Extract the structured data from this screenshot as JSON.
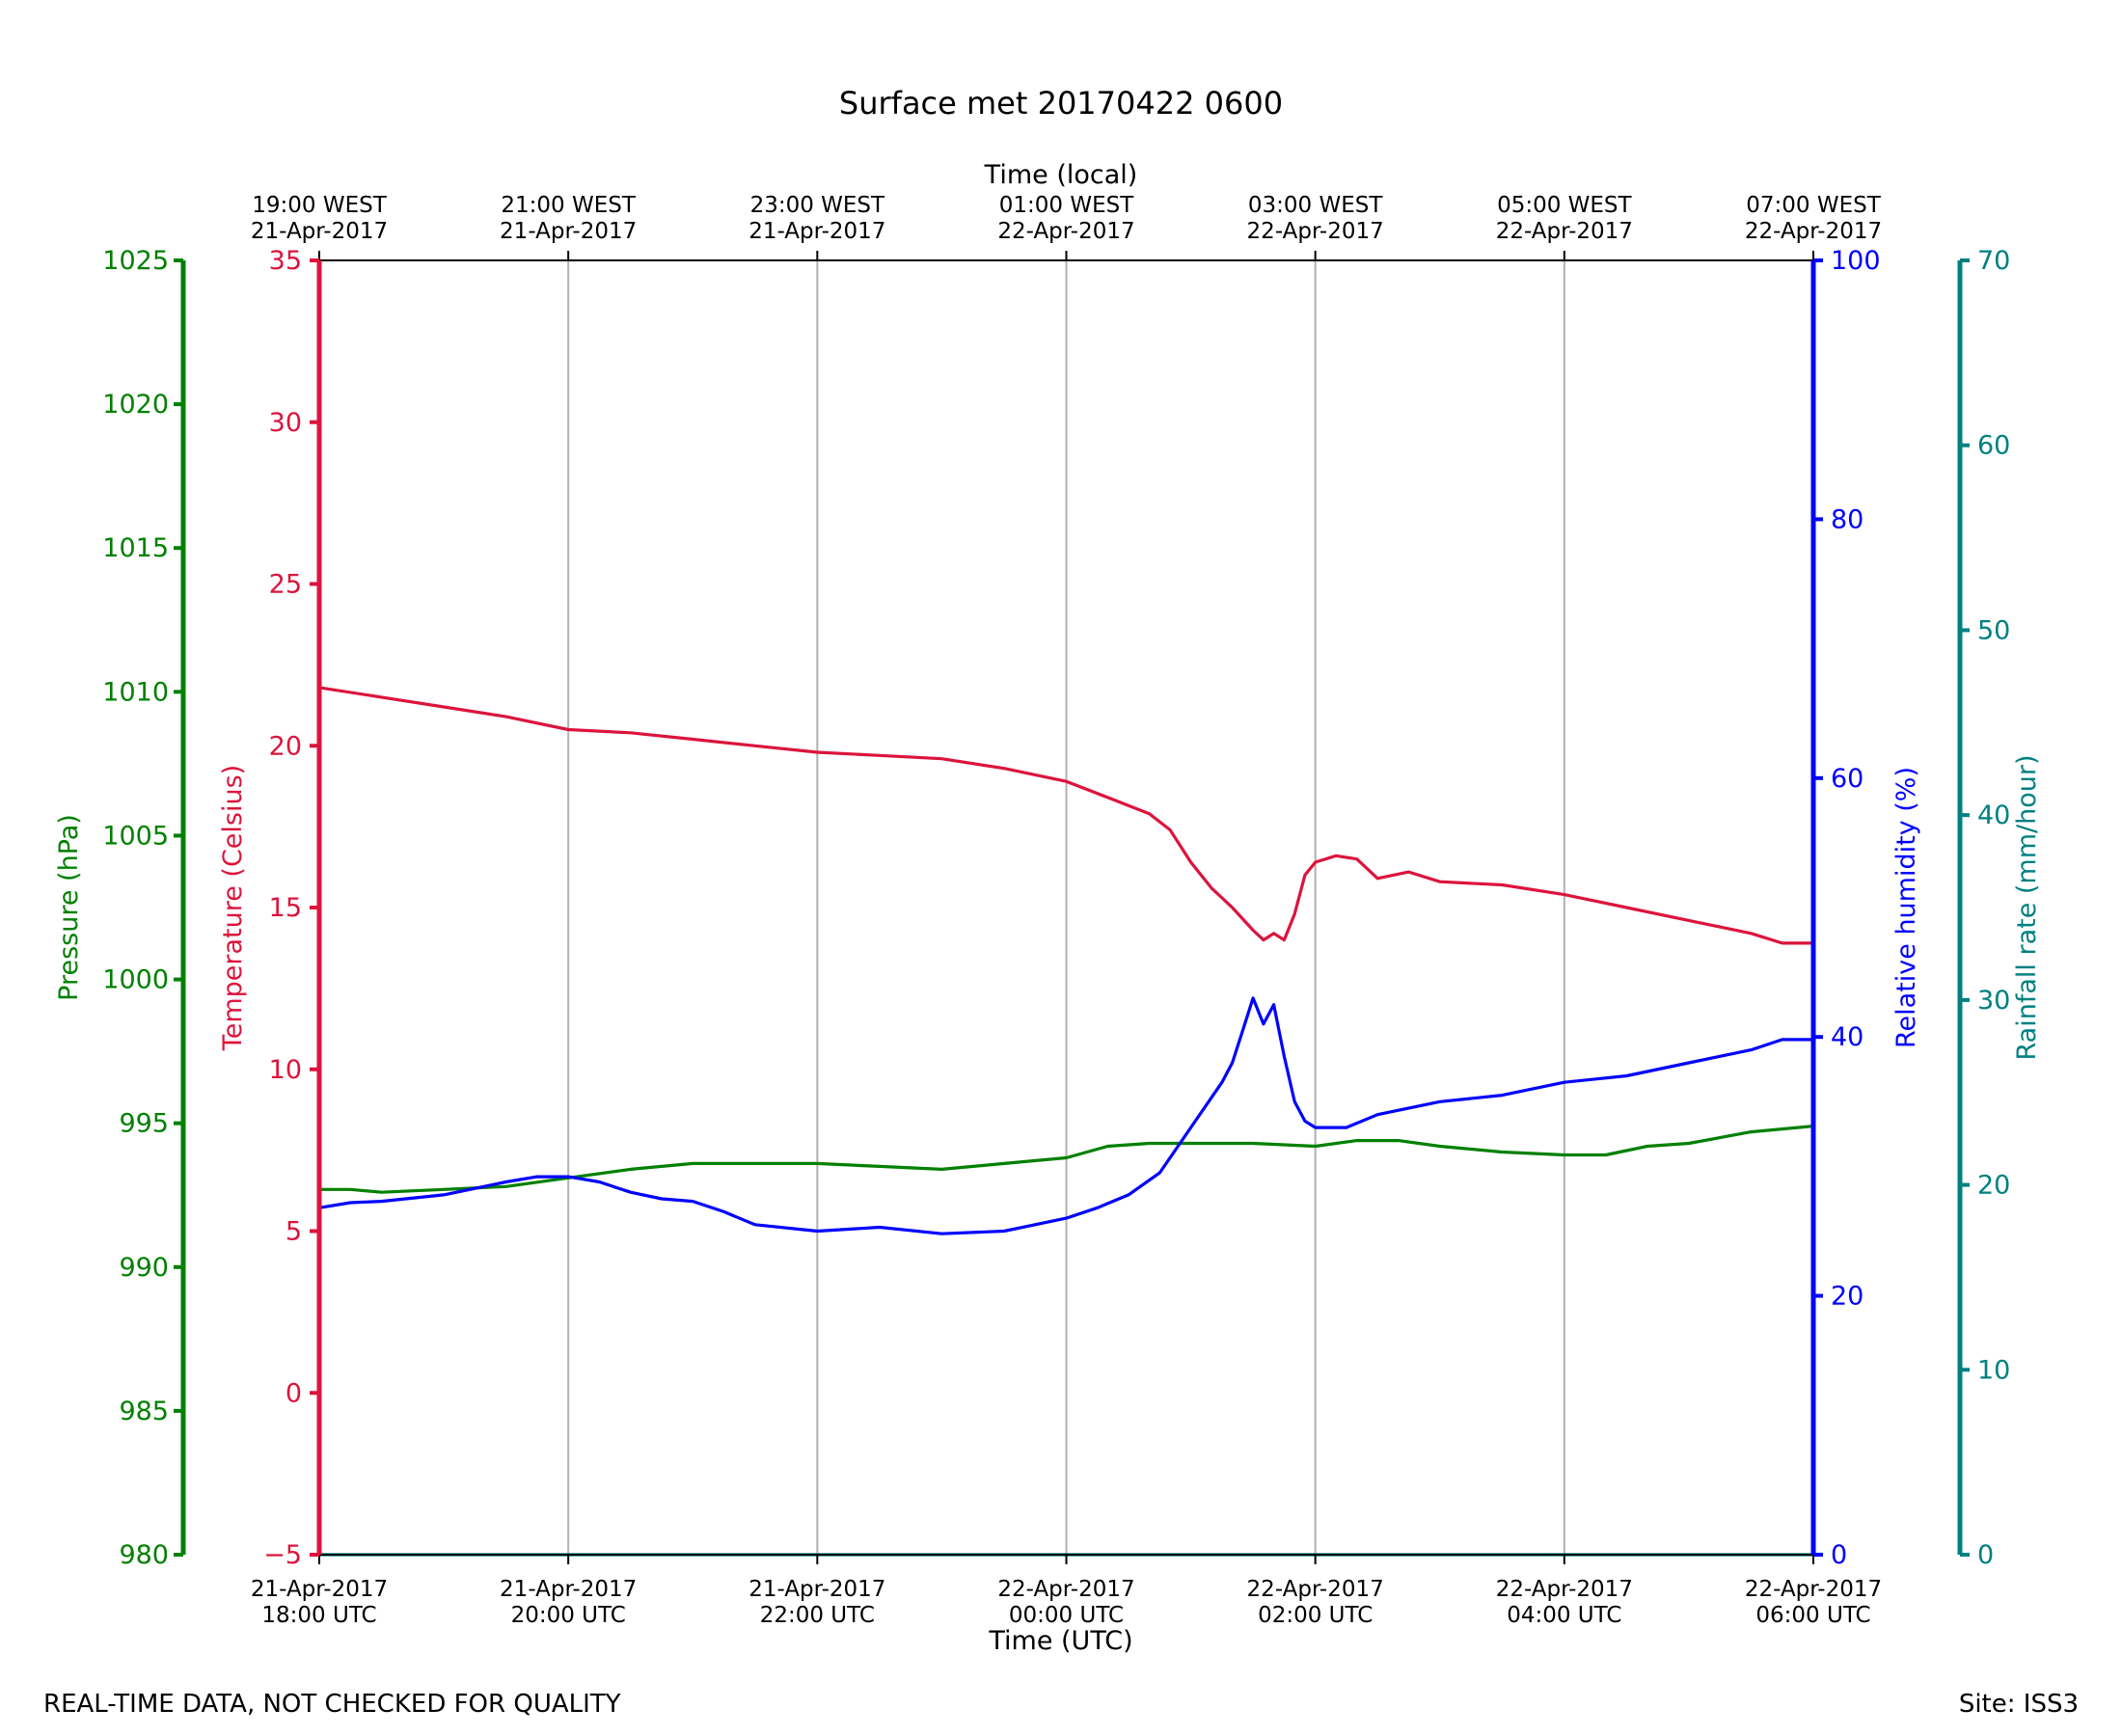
{
  "chart_data": {
    "type": "line",
    "title": "Surface met 20170422 0600",
    "xlabel": "Time (UTC)",
    "top_xlabel": "Time (local)",
    "bottom_ticks": [
      {
        "line1": "21-Apr-2017",
        "line2": "18:00 UTC"
      },
      {
        "line1": "21-Apr-2017",
        "line2": "20:00 UTC"
      },
      {
        "line1": "21-Apr-2017",
        "line2": "22:00 UTC"
      },
      {
        "line1": "22-Apr-2017",
        "line2": "00:00 UTC"
      },
      {
        "line1": "22-Apr-2017",
        "line2": "02:00 UTC"
      },
      {
        "line1": "22-Apr-2017",
        "line2": "04:00 UTC"
      },
      {
        "line1": "22-Apr-2017",
        "line2": "06:00 UTC"
      }
    ],
    "top_ticks": [
      {
        "line1": "19:00 WEST",
        "line2": "21-Apr-2017"
      },
      {
        "line1": "21:00 WEST",
        "line2": "21-Apr-2017"
      },
      {
        "line1": "23:00 WEST",
        "line2": "21-Apr-2017"
      },
      {
        "line1": "01:00 WEST",
        "line2": "22-Apr-2017"
      },
      {
        "line1": "03:00 WEST",
        "line2": "22-Apr-2017"
      },
      {
        "line1": "05:00 WEST",
        "line2": "22-Apr-2017"
      },
      {
        "line1": "07:00 WEST",
        "line2": "22-Apr-2017"
      }
    ],
    "x_range": [
      "2017-04-21 18:00 UTC",
      "2017-04-22 06:00 UTC"
    ],
    "grid": "vertical",
    "axes": {
      "temperature": {
        "label": "Temperature (Celsius)",
        "min": -5,
        "max": 35,
        "ticks": [
          -5,
          0,
          5,
          10,
          15,
          20,
          25,
          30,
          35
        ],
        "color": "#dc143c"
      },
      "pressure": {
        "label": "Pressure (hPa)",
        "min": 980,
        "max": 1025,
        "ticks": [
          980,
          985,
          990,
          995,
          1000,
          1005,
          1010,
          1015,
          1020,
          1025
        ],
        "color": "#008000"
      },
      "humidity": {
        "label": "Relative humidity (%)",
        "min": 0,
        "max": 100,
        "ticks": [
          0,
          20,
          40,
          60,
          80,
          100
        ],
        "color": "#0000ff"
      },
      "rainfall": {
        "label": "Rainfall rate (mm/hour)",
        "min": 0,
        "max": 70,
        "ticks": [
          0,
          10,
          20,
          30,
          40,
          50,
          60,
          70
        ],
        "color": "#008080"
      }
    },
    "series": [
      {
        "axis": "temperature",
        "color": "#dc143c",
        "points": [
          [
            "18:00",
            21.8
          ],
          [
            "18:30",
            21.5
          ],
          [
            "19:00",
            21.2
          ],
          [
            "19:30",
            20.9
          ],
          [
            "20:00",
            20.5
          ],
          [
            "20:30",
            20.4
          ],
          [
            "21:00",
            20.2
          ],
          [
            "21:30",
            20.0
          ],
          [
            "22:00",
            19.8
          ],
          [
            "22:30",
            19.7
          ],
          [
            "23:00",
            19.6
          ],
          [
            "23:30",
            19.3
          ],
          [
            "00:00",
            18.9
          ],
          [
            "00:20",
            18.4
          ],
          [
            "00:40",
            17.9
          ],
          [
            "00:50",
            17.4
          ],
          [
            "01:00",
            16.4
          ],
          [
            "01:10",
            15.6
          ],
          [
            "01:20",
            15.0
          ],
          [
            "01:30",
            14.3
          ],
          [
            "01:35",
            14.0
          ],
          [
            "01:40",
            14.2
          ],
          [
            "01:45",
            14.0
          ],
          [
            "01:50",
            14.8
          ],
          [
            "01:55",
            16.0
          ],
          [
            "02:00",
            16.4
          ],
          [
            "02:10",
            16.6
          ],
          [
            "02:20",
            16.5
          ],
          [
            "02:30",
            15.9
          ],
          [
            "02:45",
            16.1
          ],
          [
            "03:00",
            15.8
          ],
          [
            "03:30",
            15.7
          ],
          [
            "04:00",
            15.4
          ],
          [
            "04:30",
            15.0
          ],
          [
            "05:00",
            14.6
          ],
          [
            "05:30",
            14.2
          ],
          [
            "05:45",
            13.9
          ],
          [
            "06:00",
            13.9
          ]
        ]
      },
      {
        "axis": "pressure",
        "color": "#008000",
        "points": [
          [
            "18:00",
            992.7
          ],
          [
            "18:15",
            992.7
          ],
          [
            "18:30",
            992.6
          ],
          [
            "19:00",
            992.7
          ],
          [
            "19:30",
            992.8
          ],
          [
            "20:00",
            993.1
          ],
          [
            "20:30",
            993.4
          ],
          [
            "21:00",
            993.6
          ],
          [
            "21:30",
            993.6
          ],
          [
            "22:00",
            993.6
          ],
          [
            "22:30",
            993.5
          ],
          [
            "23:00",
            993.4
          ],
          [
            "23:30",
            993.6
          ],
          [
            "00:00",
            993.8
          ],
          [
            "00:20",
            994.2
          ],
          [
            "00:40",
            994.3
          ],
          [
            "01:00",
            994.3
          ],
          [
            "01:30",
            994.3
          ],
          [
            "02:00",
            994.2
          ],
          [
            "02:20",
            994.4
          ],
          [
            "02:40",
            994.4
          ],
          [
            "03:00",
            994.2
          ],
          [
            "03:30",
            994.0
          ],
          [
            "04:00",
            993.9
          ],
          [
            "04:20",
            993.9
          ],
          [
            "04:40",
            994.2
          ],
          [
            "05:00",
            994.3
          ],
          [
            "05:30",
            994.7
          ],
          [
            "06:00",
            994.9
          ]
        ]
      },
      {
        "axis": "humidity",
        "color": "#0000ff",
        "points": [
          [
            "18:00",
            26.8
          ],
          [
            "18:15",
            27.2
          ],
          [
            "18:30",
            27.3
          ],
          [
            "19:00",
            27.8
          ],
          [
            "19:30",
            28.8
          ],
          [
            "19:45",
            29.2
          ],
          [
            "20:00",
            29.2
          ],
          [
            "20:15",
            28.8
          ],
          [
            "20:30",
            28.0
          ],
          [
            "20:45",
            27.5
          ],
          [
            "21:00",
            27.3
          ],
          [
            "21:15",
            26.5
          ],
          [
            "21:30",
            25.5
          ],
          [
            "22:00",
            25.0
          ],
          [
            "22:30",
            25.3
          ],
          [
            "23:00",
            24.8
          ],
          [
            "23:30",
            25.0
          ],
          [
            "23:45",
            25.5
          ],
          [
            "00:00",
            26.0
          ],
          [
            "00:15",
            26.8
          ],
          [
            "00:30",
            27.8
          ],
          [
            "00:45",
            29.5
          ],
          [
            "01:00",
            33.0
          ],
          [
            "01:15",
            36.5
          ],
          [
            "01:20",
            38.0
          ],
          [
            "01:25",
            40.5
          ],
          [
            "01:30",
            43.0
          ],
          [
            "01:35",
            41.0
          ],
          [
            "01:40",
            42.5
          ],
          [
            "01:45",
            38.5
          ],
          [
            "01:50",
            35.0
          ],
          [
            "01:55",
            33.5
          ],
          [
            "02:00",
            33.0
          ],
          [
            "02:15",
            33.0
          ],
          [
            "02:30",
            34.0
          ],
          [
            "03:00",
            35.0
          ],
          [
            "03:30",
            35.5
          ],
          [
            "04:00",
            36.5
          ],
          [
            "04:30",
            37.0
          ],
          [
            "05:00",
            38.0
          ],
          [
            "05:30",
            39.0
          ],
          [
            "05:45",
            39.8
          ],
          [
            "06:00",
            39.8
          ]
        ]
      },
      {
        "axis": "rainfall",
        "color": "#008080",
        "points": [
          [
            "18:00",
            0.0
          ],
          [
            "06:00",
            0.0
          ]
        ]
      }
    ]
  },
  "footer": {
    "note": "REAL-TIME DATA, NOT CHECKED FOR QUALITY",
    "site": "Site: ISS3"
  }
}
